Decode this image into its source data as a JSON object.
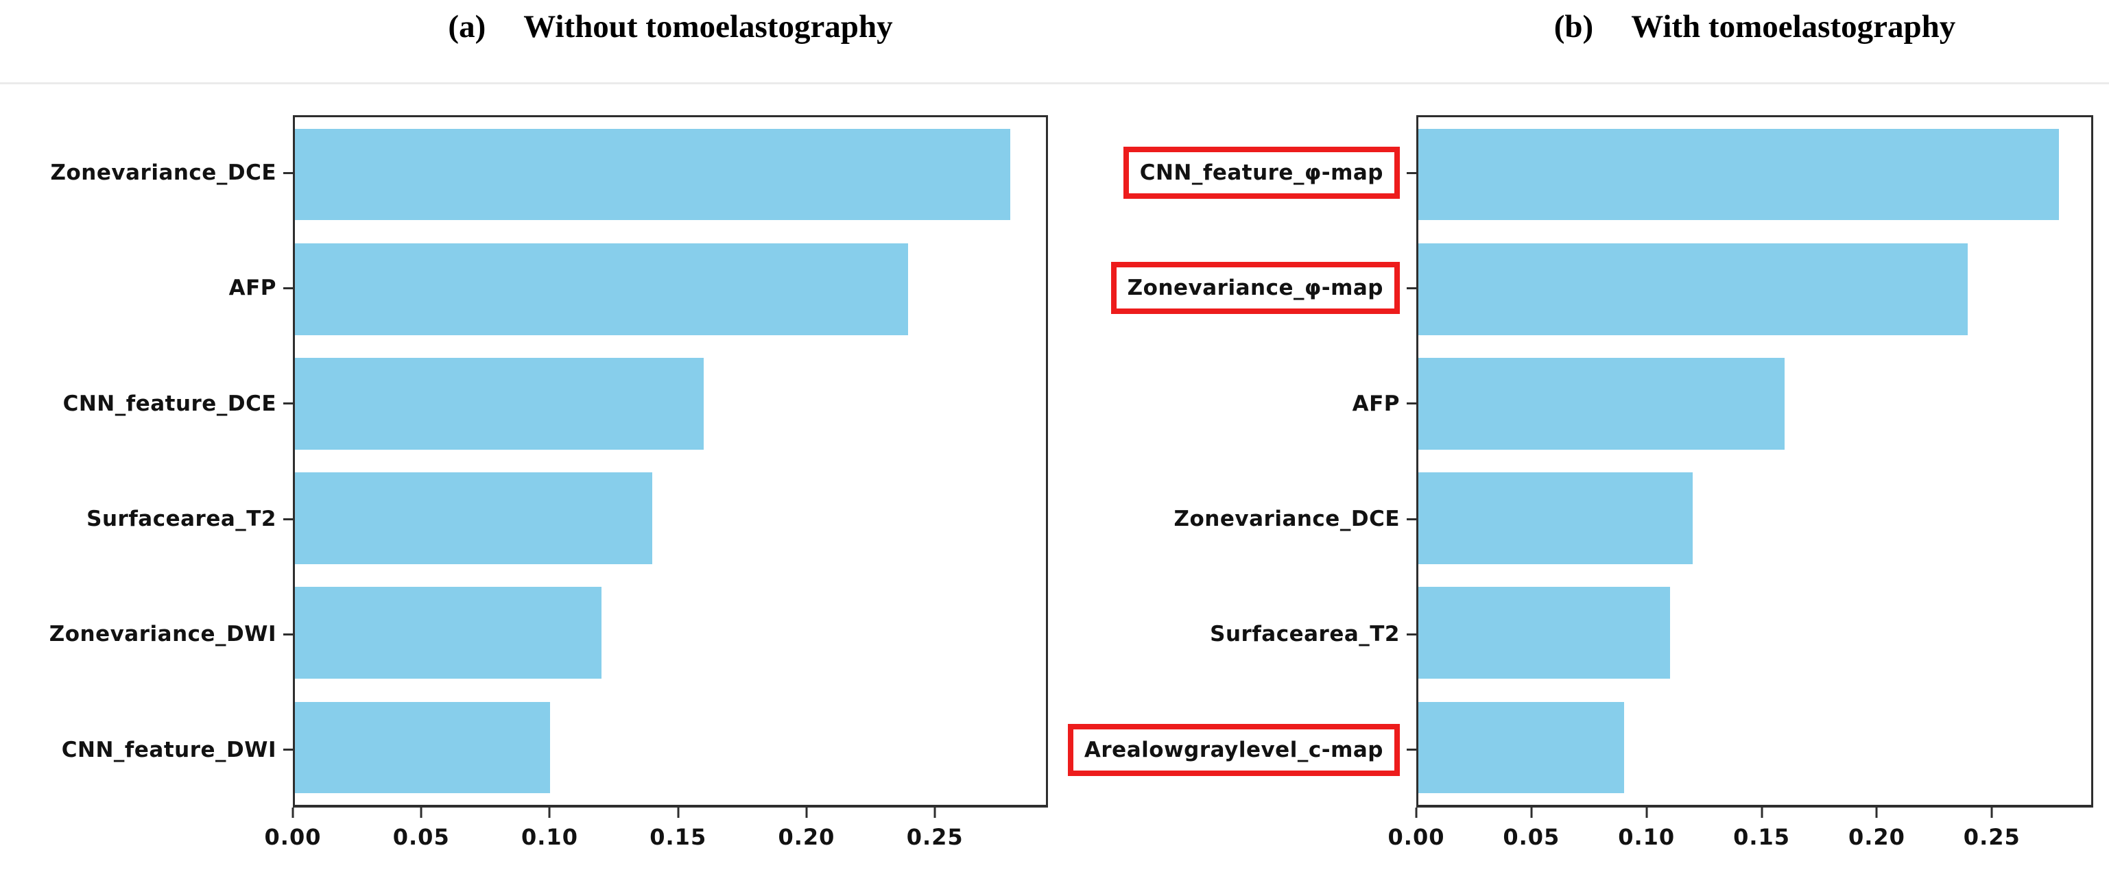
{
  "chart_data": [
    {
      "type": "bar",
      "orientation": "horizontal",
      "panel_label": "(a)",
      "title": "Without tomoelastography",
      "categories": [
        "Zonevariance_DCE",
        "AFP",
        "CNN_feature_DCE",
        "Surfacearea_T2",
        "Zonevariance_DWI",
        "CNN_feature_DWI"
      ],
      "values": [
        0.28,
        0.24,
        0.16,
        0.14,
        0.12,
        0.1
      ],
      "highlighted_categories": [],
      "x_tick_labels": [
        "0.00",
        "0.05",
        "0.10",
        "0.15",
        "0.20",
        "0.25"
      ],
      "xlim": [
        0,
        0.294
      ],
      "bar_color": "#87CEEB",
      "bar_height_fraction": 0.8,
      "grid": false
    },
    {
      "type": "bar",
      "orientation": "horizontal",
      "panel_label": "(b)",
      "title": "With tomoelastography",
      "categories": [
        "CNN_feature_φ-map",
        "Zonevariance_φ-map",
        "AFP",
        "Zonevariance_DCE",
        "Surfacearea_T2",
        "Arealowgraylevel_c-map"
      ],
      "values": [
        0.28,
        0.24,
        0.16,
        0.12,
        0.11,
        0.09
      ],
      "highlighted_categories": [
        "CNN_feature_φ-map",
        "Zonevariance_φ-map",
        "Arealowgraylevel_c-map"
      ],
      "x_tick_labels": [
        "0.00",
        "0.05",
        "0.10",
        "0.15",
        "0.20",
        "0.25"
      ],
      "xlim": [
        0,
        0.294
      ],
      "bar_color": "#87CEEB",
      "bar_height_fraction": 0.8,
      "grid": false
    }
  ],
  "styles": {
    "bar_color": "#87CEEB",
    "highlight_box_color": "#ED1C1C",
    "spine_color": "#2E2E2E",
    "text_color": "#121212",
    "rule_color": "#EBEBEB",
    "background": "#FFFFFF"
  }
}
